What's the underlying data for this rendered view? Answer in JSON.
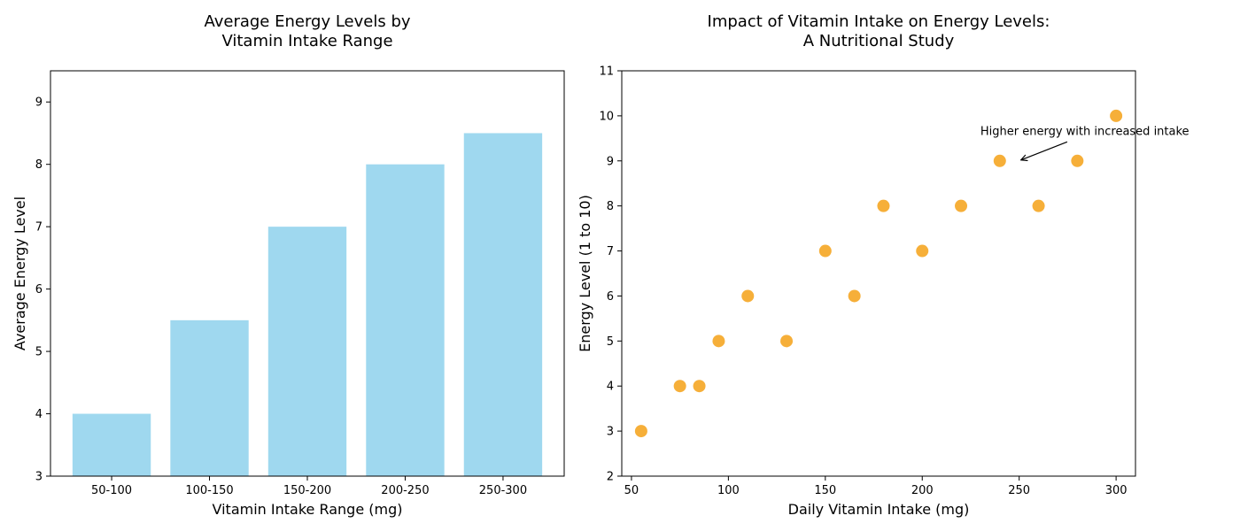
{
  "chart_data": [
    {
      "type": "bar",
      "title_lines": [
        "Average Energy Levels by",
        "Vitamin Intake Range"
      ],
      "xlabel": "Vitamin Intake Range (mg)",
      "ylabel": "Average Energy Level",
      "categories": [
        "50-100",
        "100-150",
        "150-200",
        "200-250",
        "250-300"
      ],
      "values": [
        4.0,
        5.5,
        7.0,
        8.0,
        8.5
      ],
      "ylim": [
        3,
        9.5
      ],
      "yticks": [
        3,
        4,
        5,
        6,
        7,
        8,
        9
      ],
      "bar_color": "#87ceeb",
      "grid": false
    },
    {
      "type": "scatter",
      "title_lines": [
        "Impact of Vitamin Intake on Energy Levels:",
        "A Nutritional Study"
      ],
      "xlabel": "Daily Vitamin Intake (mg)",
      "ylabel": "Energy Level (1 to 10)",
      "x": [
        55,
        75,
        85,
        95,
        110,
        130,
        150,
        165,
        180,
        200,
        220,
        240,
        260,
        280,
        300
      ],
      "y": [
        3,
        4,
        4,
        5,
        6,
        5,
        7,
        6,
        8,
        7,
        8,
        9,
        8,
        9,
        10
      ],
      "xlim": [
        45,
        310
      ],
      "ylim": [
        2,
        11
      ],
      "xticks": [
        50,
        100,
        150,
        200,
        250,
        300
      ],
      "yticks": [
        2,
        3,
        4,
        5,
        6,
        7,
        8,
        9,
        10,
        11
      ],
      "marker_color": "#f5a623",
      "grid": false,
      "annotation": {
        "text": "Higher energy with increased intake",
        "point": [
          250,
          9
        ],
        "text_pos": [
          230,
          9.5
        ]
      }
    }
  ]
}
